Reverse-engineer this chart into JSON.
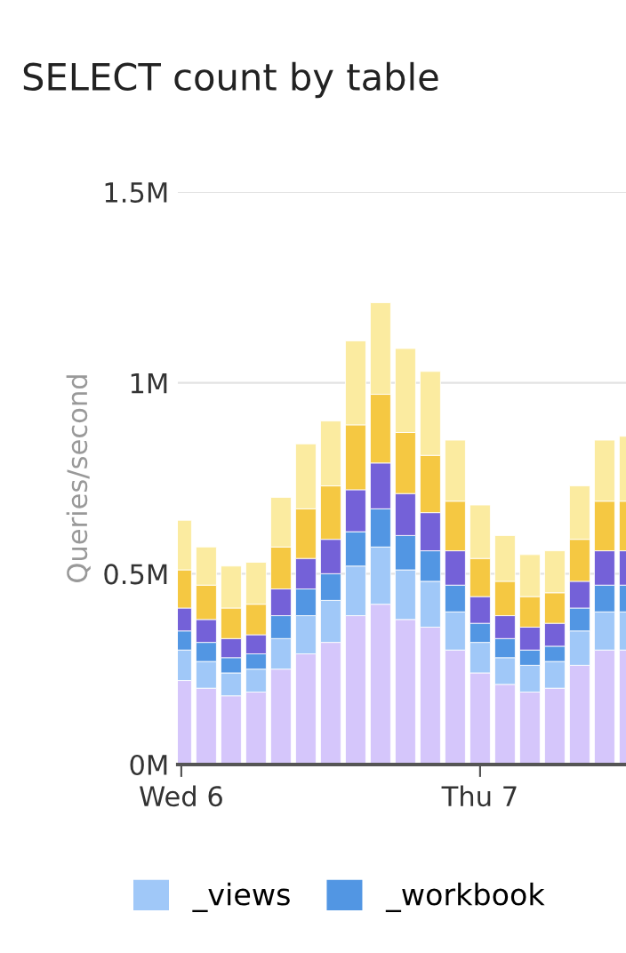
{
  "chart_data": {
    "type": "bar",
    "title": "SELECT count by table",
    "ylabel": "Queries/second",
    "stacked": true,
    "categories": [
      "Wed 6",
      null,
      null,
      null,
      null,
      null,
      null,
      null,
      null,
      null,
      null,
      null,
      "Thu 7",
      null,
      null,
      null,
      null,
      null,
      null
    ],
    "series": [
      {
        "color": "#d5c6fb",
        "values": [
          0.22,
          0.2,
          0.18,
          0.19,
          0.25,
          0.29,
          0.32,
          0.39,
          0.42,
          0.38,
          0.36,
          0.3,
          0.24,
          0.21,
          0.19,
          0.2,
          0.26,
          0.3,
          0.3
        ]
      },
      {
        "name": "_views",
        "color": "#a0c8f8",
        "values": [
          0.08,
          0.07,
          0.06,
          0.06,
          0.08,
          0.1,
          0.11,
          0.13,
          0.15,
          0.13,
          0.12,
          0.1,
          0.08,
          0.07,
          0.07,
          0.07,
          0.09,
          0.1,
          0.1
        ]
      },
      {
        "name": "_workbook",
        "color": "#5296e3",
        "values": [
          0.05,
          0.05,
          0.04,
          0.04,
          0.06,
          0.07,
          0.07,
          0.09,
          0.1,
          0.09,
          0.08,
          0.07,
          0.05,
          0.05,
          0.04,
          0.04,
          0.06,
          0.07,
          0.07
        ]
      },
      {
        "color": "#7461d8",
        "values": [
          0.06,
          0.06,
          0.05,
          0.05,
          0.07,
          0.08,
          0.09,
          0.11,
          0.12,
          0.11,
          0.1,
          0.09,
          0.07,
          0.06,
          0.06,
          0.06,
          0.07,
          0.09,
          0.09
        ]
      },
      {
        "color": "#f5c842",
        "values": [
          0.1,
          0.09,
          0.08,
          0.08,
          0.11,
          0.13,
          0.14,
          0.17,
          0.18,
          0.16,
          0.15,
          0.13,
          0.1,
          0.09,
          0.08,
          0.08,
          0.11,
          0.13,
          0.13
        ]
      },
      {
        "color": "#fbeba0",
        "values": [
          0.13,
          0.1,
          0.11,
          0.11,
          0.13,
          0.17,
          0.17,
          0.22,
          0.24,
          0.22,
          0.22,
          0.16,
          0.14,
          0.12,
          0.11,
          0.11,
          0.14,
          0.16,
          0.17
        ]
      }
    ],
    "ylim": [
      0,
      1.5
    ],
    "yticks": [
      {
        "value": 0,
        "label": "0M"
      },
      {
        "value": 0.5,
        "label": "0.5M"
      },
      {
        "value": 1,
        "label": "1M"
      },
      {
        "value": 1.5,
        "label": "1.5M"
      }
    ],
    "grid": "y",
    "legend": "bottom"
  }
}
